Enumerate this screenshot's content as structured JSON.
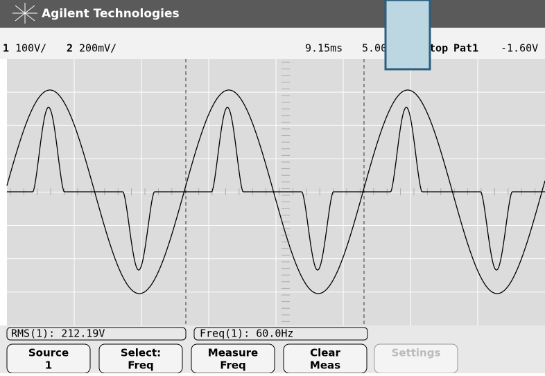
{
  "header": {
    "brand": "Agilent Technologies"
  },
  "status": {
    "ch1": "1",
    "ch1_scale": "100V/",
    "ch2": "2",
    "ch2_scale": "200mV/",
    "time_ref": "9.15ms",
    "time_scale": "5.00",
    "run_state": "Stop",
    "trigger": "Pat1",
    "trigger_level": "-1.60V"
  },
  "measurements": [
    "RMS(1): 212.19V",
    "Freq(1): 60.0Hz"
  ],
  "softkeys": [
    {
      "label": "Source",
      "value": "1"
    },
    {
      "label": "Select:",
      "value": "Freq"
    },
    {
      "label": "Measure",
      "value": "Freq"
    },
    {
      "label": "Clear",
      "value": "Meas"
    },
    {
      "label": "Settings"
    }
  ]
}
